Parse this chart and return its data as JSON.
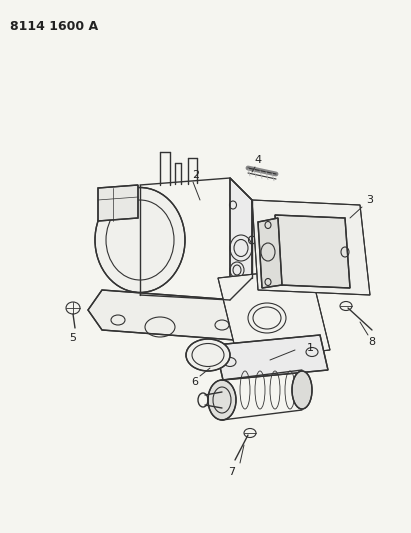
{
  "title": "8114 1600 A",
  "background_color": "#f5f5f0",
  "fig_width": 4.11,
  "fig_height": 5.33,
  "dpi": 100,
  "line_color": "#333333",
  "label_color": "#222222"
}
